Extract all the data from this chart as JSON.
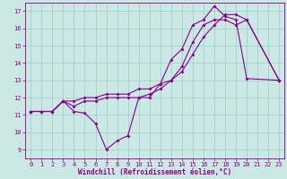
{
  "title": "",
  "xlabel": "Windchill (Refroidissement éolien,°C)",
  "ylabel": "",
  "bg_color": "#cce8e4",
  "line_color": "#880088",
  "grid_color": "#99cccc",
  "xlim": [
    -0.5,
    23.5
  ],
  "ylim": [
    8.5,
    17.5
  ],
  "xticks": [
    0,
    1,
    2,
    3,
    4,
    5,
    6,
    7,
    8,
    9,
    10,
    11,
    12,
    13,
    14,
    15,
    16,
    17,
    18,
    19,
    20,
    21,
    22,
    23
  ],
  "yticks": [
    9,
    10,
    11,
    12,
    13,
    14,
    15,
    16,
    17
  ],
  "line1_x": [
    0,
    1,
    2,
    3,
    4,
    5,
    6,
    7,
    8,
    9,
    10,
    11,
    12,
    13,
    14,
    15,
    16,
    17,
    18,
    19,
    20,
    23
  ],
  "line1_y": [
    11.2,
    11.2,
    11.2,
    11.8,
    11.2,
    11.1,
    10.5,
    9.0,
    9.5,
    9.8,
    12.0,
    12.0,
    12.8,
    14.2,
    14.8,
    16.2,
    16.5,
    17.3,
    16.7,
    16.5,
    13.1,
    13.0
  ],
  "line2_x": [
    0,
    1,
    2,
    3,
    4,
    5,
    6,
    7,
    8,
    9,
    10,
    11,
    12,
    13,
    14,
    15,
    16,
    17,
    18,
    19,
    20,
    23
  ],
  "line2_y": [
    11.2,
    11.2,
    11.2,
    11.8,
    11.5,
    11.8,
    11.8,
    12.0,
    12.0,
    12.0,
    12.0,
    12.2,
    12.5,
    13.0,
    13.8,
    15.2,
    16.2,
    16.5,
    16.5,
    16.2,
    16.5,
    13.0
  ],
  "line3_x": [
    0,
    1,
    2,
    3,
    4,
    5,
    6,
    7,
    8,
    9,
    10,
    11,
    12,
    13,
    14,
    15,
    16,
    17,
    18,
    19,
    20,
    23
  ],
  "line3_y": [
    11.2,
    11.2,
    11.2,
    11.8,
    11.8,
    12.0,
    12.0,
    12.2,
    12.2,
    12.2,
    12.5,
    12.5,
    12.8,
    13.0,
    13.5,
    14.5,
    15.5,
    16.2,
    16.8,
    16.8,
    16.5,
    13.0
  ],
  "xlabel_fontsize": 5.5,
  "tick_fontsize": 5,
  "linewidth": 0.8,
  "markersize": 2.0
}
